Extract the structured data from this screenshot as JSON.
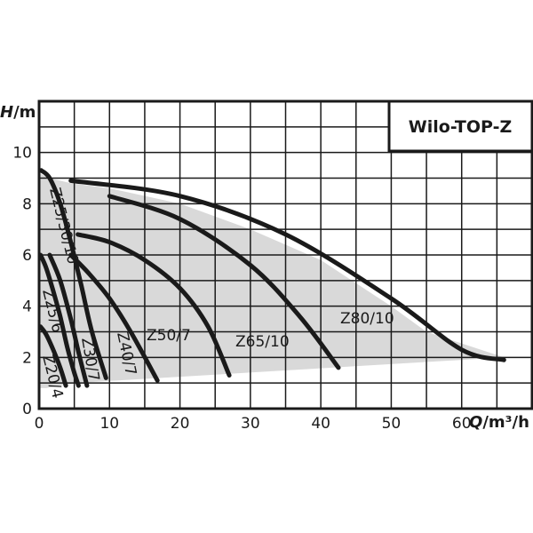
{
  "chart_data": {
    "type": "line",
    "title": "Wilo-TOP-Z",
    "xlabel_var": "Q",
    "xlabel_unit": "/m³/h",
    "ylabel_var": "H",
    "ylabel_unit": "/m",
    "xlim": [
      0,
      70
    ],
    "ylim": [
      0,
      12
    ],
    "xticks": [
      "0",
      "10",
      "20",
      "30",
      "40",
      "50",
      "60"
    ],
    "yticks": [
      "0",
      "2",
      "4",
      "6",
      "8",
      "10"
    ],
    "grid": true,
    "operating_area": [
      [
        0,
        9.2
      ],
      [
        1.5,
        9
      ],
      [
        4.5,
        8.8
      ],
      [
        10,
        8.6
      ],
      [
        20,
        8.0
      ],
      [
        30,
        7.0
      ],
      [
        40,
        5.8
      ],
      [
        50,
        4.0
      ],
      [
        55,
        3.0
      ],
      [
        66,
        2.0
      ],
      [
        5,
        1.0
      ],
      [
        1,
        0.8
      ],
      [
        0,
        0.8
      ]
    ],
    "series": [
      {
        "name": "Z20/4",
        "points": [
          [
            0.2,
            3.2
          ],
          [
            1,
            2.9
          ],
          [
            2,
            2.3
          ],
          [
            3,
            1.6
          ],
          [
            3.8,
            0.9
          ]
        ]
      },
      {
        "name": "Z25/6",
        "points": [
          [
            0.2,
            6.0
          ],
          [
            1,
            5.5
          ],
          [
            2,
            4.6
          ],
          [
            3,
            3.6
          ],
          [
            4,
            2.4
          ],
          [
            5,
            1.4
          ],
          [
            5.6,
            0.9
          ]
        ]
      },
      {
        "name": "Z30/7",
        "points": [
          [
            1.5,
            6.0
          ],
          [
            3,
            5.0
          ],
          [
            4.5,
            3.5
          ],
          [
            5.6,
            2.2
          ],
          [
            6.8,
            0.9
          ]
        ]
      },
      {
        "name": "Z30/10",
        "points": [
          [
            0.3,
            9.3
          ],
          [
            1.5,
            9.0
          ],
          [
            3,
            8.0
          ],
          [
            4.5,
            6.5
          ],
          [
            6,
            4.8
          ],
          [
            7.5,
            3.0
          ],
          [
            9.5,
            1.2
          ]
        ]
      },
      {
        "name": "Z40/7",
        "points": [
          [
            4.5,
            6.0
          ],
          [
            7,
            5.3
          ],
          [
            10,
            4.3
          ],
          [
            13,
            3.0
          ],
          [
            16.8,
            1.1
          ]
        ]
      },
      {
        "name": "Z50/7",
        "points": [
          [
            5.5,
            6.8
          ],
          [
            10,
            6.5
          ],
          [
            15,
            5.8
          ],
          [
            20,
            4.7
          ],
          [
            24,
            3.2
          ],
          [
            27,
            1.3
          ]
        ]
      },
      {
        "name": "Z65/10",
        "points": [
          [
            10,
            8.3
          ],
          [
            20,
            7.4
          ],
          [
            30,
            5.6
          ],
          [
            37,
            3.6
          ],
          [
            42.5,
            1.6
          ]
        ]
      },
      {
        "name": "Z80/10",
        "points": [
          [
            4.5,
            8.9
          ],
          [
            20,
            8.3
          ],
          [
            35,
            6.8
          ],
          [
            50,
            4.3
          ],
          [
            60,
            2.3
          ],
          [
            66,
            1.9
          ]
        ]
      }
    ],
    "series_labels": [
      {
        "name": "Z80/10",
        "text": "Z80/10"
      },
      {
        "name": "Z65/10",
        "text": "Z65/10"
      },
      {
        "name": "Z50/7",
        "text": "Z50/7"
      },
      {
        "name": "Z40/7",
        "text": "Z40/7"
      },
      {
        "name": "Z30/7",
        "text": "Z30/7"
      },
      {
        "name": "Z25/30/10",
        "text": "Z25/30/10"
      },
      {
        "name": "Z25/6",
        "text": "Z25/6"
      },
      {
        "name": "Z20/4",
        "text": "Z20/4"
      }
    ]
  }
}
